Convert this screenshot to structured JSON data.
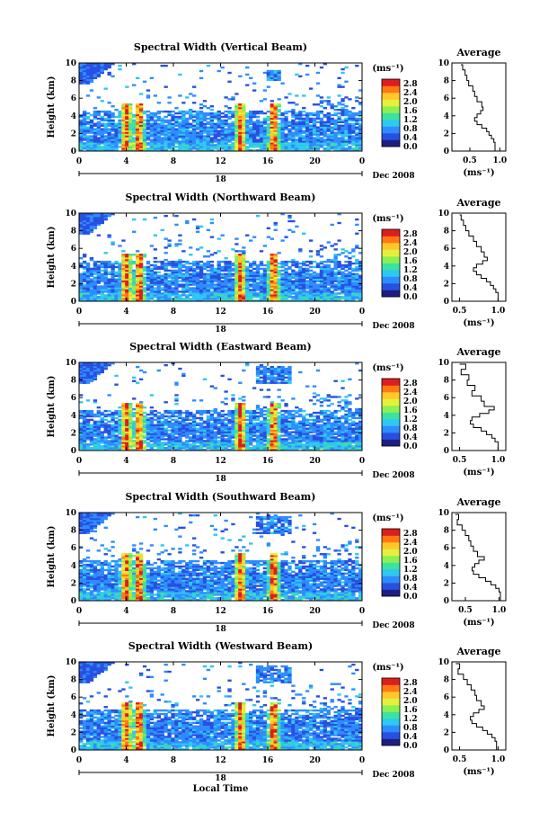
{
  "figure": {
    "xlabel": "Local Time",
    "date_label": "Dec 2008",
    "day_label": "18"
  },
  "colorbar": {
    "unit": "(ms⁻¹)",
    "ticks": [
      "0.0",
      "0.4",
      "0.8",
      "1.2",
      "1.6",
      "2.0",
      "2.4",
      "2.8"
    ],
    "colors": [
      "#1e1e82",
      "#2850e0",
      "#2f8cff",
      "#2ec8f0",
      "#3ce2a0",
      "#8cf050",
      "#e6f03c",
      "#ffc828",
      "#ff7814",
      "#dc1e1e"
    ]
  },
  "chart_data": [
    {
      "type": "heatmap",
      "title": "Spectral Width (Vertical Beam)",
      "ylabel": "Height (km)",
      "xlabel": "",
      "xlim": [
        0,
        24
      ],
      "ylim": [
        0,
        10
      ],
      "xticks": [
        "0",
        "4",
        "8",
        "12",
        "16",
        "20",
        "0"
      ],
      "yticks": [
        "0",
        "2",
        "4",
        "6",
        "8",
        "10"
      ],
      "colorbar_range": [
        0,
        3.0
      ]
    },
    {
      "type": "line",
      "title": "Average",
      "xlabel": "(ms⁻¹)",
      "ylabel": "",
      "xlim": [
        0.2,
        1.1
      ],
      "ylim": [
        0,
        10
      ],
      "xticks": [
        "0.5",
        "1.0"
      ],
      "yticks": [
        "0",
        "2",
        "4",
        "6",
        "8",
        "10"
      ],
      "x": [
        0.35,
        0.38,
        0.42,
        0.45,
        0.48,
        0.55,
        0.58,
        0.62,
        0.7,
        0.72,
        0.68,
        0.62,
        0.58,
        0.62,
        0.7,
        0.78,
        0.82,
        0.86,
        0.9,
        0.92,
        0.92
      ],
      "y": [
        9.8,
        9.2,
        8.6,
        8.0,
        7.4,
        6.8,
        6.2,
        5.6,
        5.0,
        4.6,
        4.2,
        3.8,
        3.4,
        3.0,
        2.6,
        2.2,
        1.8,
        1.4,
        1.0,
        0.5,
        0.0
      ]
    },
    {
      "type": "heatmap",
      "title": "Spectral Width (Northward Beam)",
      "ylabel": "Height (km)",
      "xlabel": "",
      "xlim": [
        0,
        24
      ],
      "ylim": [
        0,
        10
      ],
      "xticks": [
        "0",
        "4",
        "8",
        "12",
        "16",
        "20",
        "0"
      ],
      "yticks": [
        "0",
        "2",
        "4",
        "6",
        "8",
        "10"
      ],
      "colorbar_range": [
        0,
        3.0
      ]
    },
    {
      "type": "line",
      "title": "Average",
      "xlabel": "(ms⁻¹)",
      "ylabel": "",
      "xlim": [
        0.4,
        1.1
      ],
      "ylim": [
        0,
        10
      ],
      "xticks": [
        "0.5",
        "1.0"
      ],
      "yticks": [
        "0",
        "2",
        "4",
        "6",
        "8",
        "10"
      ],
      "x": [
        0.5,
        0.52,
        0.55,
        0.58,
        0.62,
        0.68,
        0.72,
        0.78,
        0.82,
        0.86,
        0.8,
        0.72,
        0.68,
        0.72,
        0.78,
        0.85,
        0.9,
        0.94,
        0.97,
        1.0,
        1.0
      ],
      "y": [
        9.8,
        9.2,
        8.6,
        8.0,
        7.4,
        6.8,
        6.2,
        5.6,
        5.0,
        4.6,
        4.2,
        3.8,
        3.4,
        3.0,
        2.6,
        2.2,
        1.8,
        1.4,
        1.0,
        0.5,
        0.0
      ]
    },
    {
      "type": "heatmap",
      "title": "Spectral Width (Eastward Beam)",
      "ylabel": "Height (km)",
      "xlabel": "",
      "xlim": [
        0,
        24
      ],
      "ylim": [
        0,
        10
      ],
      "xticks": [
        "0",
        "4",
        "8",
        "12",
        "16",
        "20",
        "0"
      ],
      "yticks": [
        "0",
        "2",
        "4",
        "6",
        "8",
        "10"
      ],
      "colorbar_range": [
        0,
        3.0
      ]
    },
    {
      "type": "line",
      "title": "Average",
      "xlabel": "(ms⁻¹)",
      "ylabel": "",
      "xlim": [
        0.4,
        1.1
      ],
      "ylim": [
        0,
        10
      ],
      "xticks": [
        "0.5",
        "1.0"
      ],
      "yticks": [
        "0",
        "2",
        "4",
        "6",
        "8",
        "10"
      ],
      "x": [
        0.5,
        0.58,
        0.52,
        0.62,
        0.6,
        0.7,
        0.66,
        0.78,
        0.82,
        0.95,
        0.88,
        0.76,
        0.66,
        0.64,
        0.68,
        0.78,
        0.85,
        0.92,
        0.96,
        1.0,
        1.0
      ],
      "y": [
        9.8,
        9.2,
        8.6,
        8.0,
        7.4,
        6.8,
        6.2,
        5.6,
        5.0,
        4.6,
        4.2,
        3.8,
        3.4,
        3.0,
        2.6,
        2.2,
        1.8,
        1.4,
        1.0,
        0.5,
        0.0
      ]
    },
    {
      "type": "heatmap",
      "title": "Spectral Width (Southward Beam)",
      "ylabel": "Height (km)",
      "xlabel": "",
      "xlim": [
        0,
        24
      ],
      "ylim": [
        0,
        10
      ],
      "xticks": [
        "0",
        "4",
        "8",
        "12",
        "16",
        "20",
        "0"
      ],
      "yticks": [
        "0",
        "2",
        "4",
        "6",
        "8",
        "10"
      ],
      "colorbar_range": [
        0,
        3.0
      ]
    },
    {
      "type": "line",
      "title": "Average",
      "xlabel": "(ms⁻¹)",
      "ylabel": "",
      "xlim": [
        0.3,
        1.1
      ],
      "ylim": [
        0,
        10
      ],
      "xticks": [
        "0.5",
        "1.0"
      ],
      "yticks": [
        "0",
        "2",
        "4",
        "6",
        "8",
        "10"
      ],
      "x": [
        0.35,
        0.4,
        0.38,
        0.45,
        0.5,
        0.55,
        0.58,
        0.62,
        0.68,
        0.78,
        0.7,
        0.64,
        0.6,
        0.62,
        0.7,
        0.8,
        0.88,
        0.95,
        1.0,
        1.02,
        1.02
      ],
      "y": [
        9.8,
        9.2,
        8.6,
        8.0,
        7.4,
        6.8,
        6.2,
        5.6,
        5.0,
        4.6,
        4.2,
        3.8,
        3.4,
        3.0,
        2.6,
        2.2,
        1.8,
        1.4,
        1.0,
        0.5,
        0.0
      ]
    },
    {
      "type": "heatmap",
      "title": "Spectral Width (Westward Beam)",
      "ylabel": "Height (km)",
      "xlabel": "",
      "xlim": [
        0,
        24
      ],
      "ylim": [
        0,
        10
      ],
      "xticks": [
        "0",
        "4",
        "8",
        "12",
        "16",
        "20",
        "0"
      ],
      "yticks": [
        "0",
        "2",
        "4",
        "6",
        "8",
        "10"
      ],
      "colorbar_range": [
        0,
        3.0
      ]
    },
    {
      "type": "line",
      "title": "Average",
      "xlabel": "(ms⁻¹)",
      "ylabel": "",
      "xlim": [
        0.4,
        1.1
      ],
      "ylim": [
        0,
        10
      ],
      "xticks": [
        "0.5",
        "1.0"
      ],
      "yticks": [
        "0",
        "2",
        "4",
        "6",
        "8",
        "10"
      ],
      "x": [
        0.45,
        0.5,
        0.48,
        0.55,
        0.6,
        0.65,
        0.7,
        0.72,
        0.78,
        0.82,
        0.75,
        0.68,
        0.64,
        0.66,
        0.72,
        0.8,
        0.86,
        0.92,
        0.96,
        0.98,
        0.98
      ],
      "y": [
        9.8,
        9.2,
        8.6,
        8.0,
        7.4,
        6.8,
        6.2,
        5.6,
        5.0,
        4.6,
        4.2,
        3.8,
        3.4,
        3.0,
        2.6,
        2.2,
        1.8,
        1.4,
        1.0,
        0.5,
        0.0
      ]
    }
  ]
}
